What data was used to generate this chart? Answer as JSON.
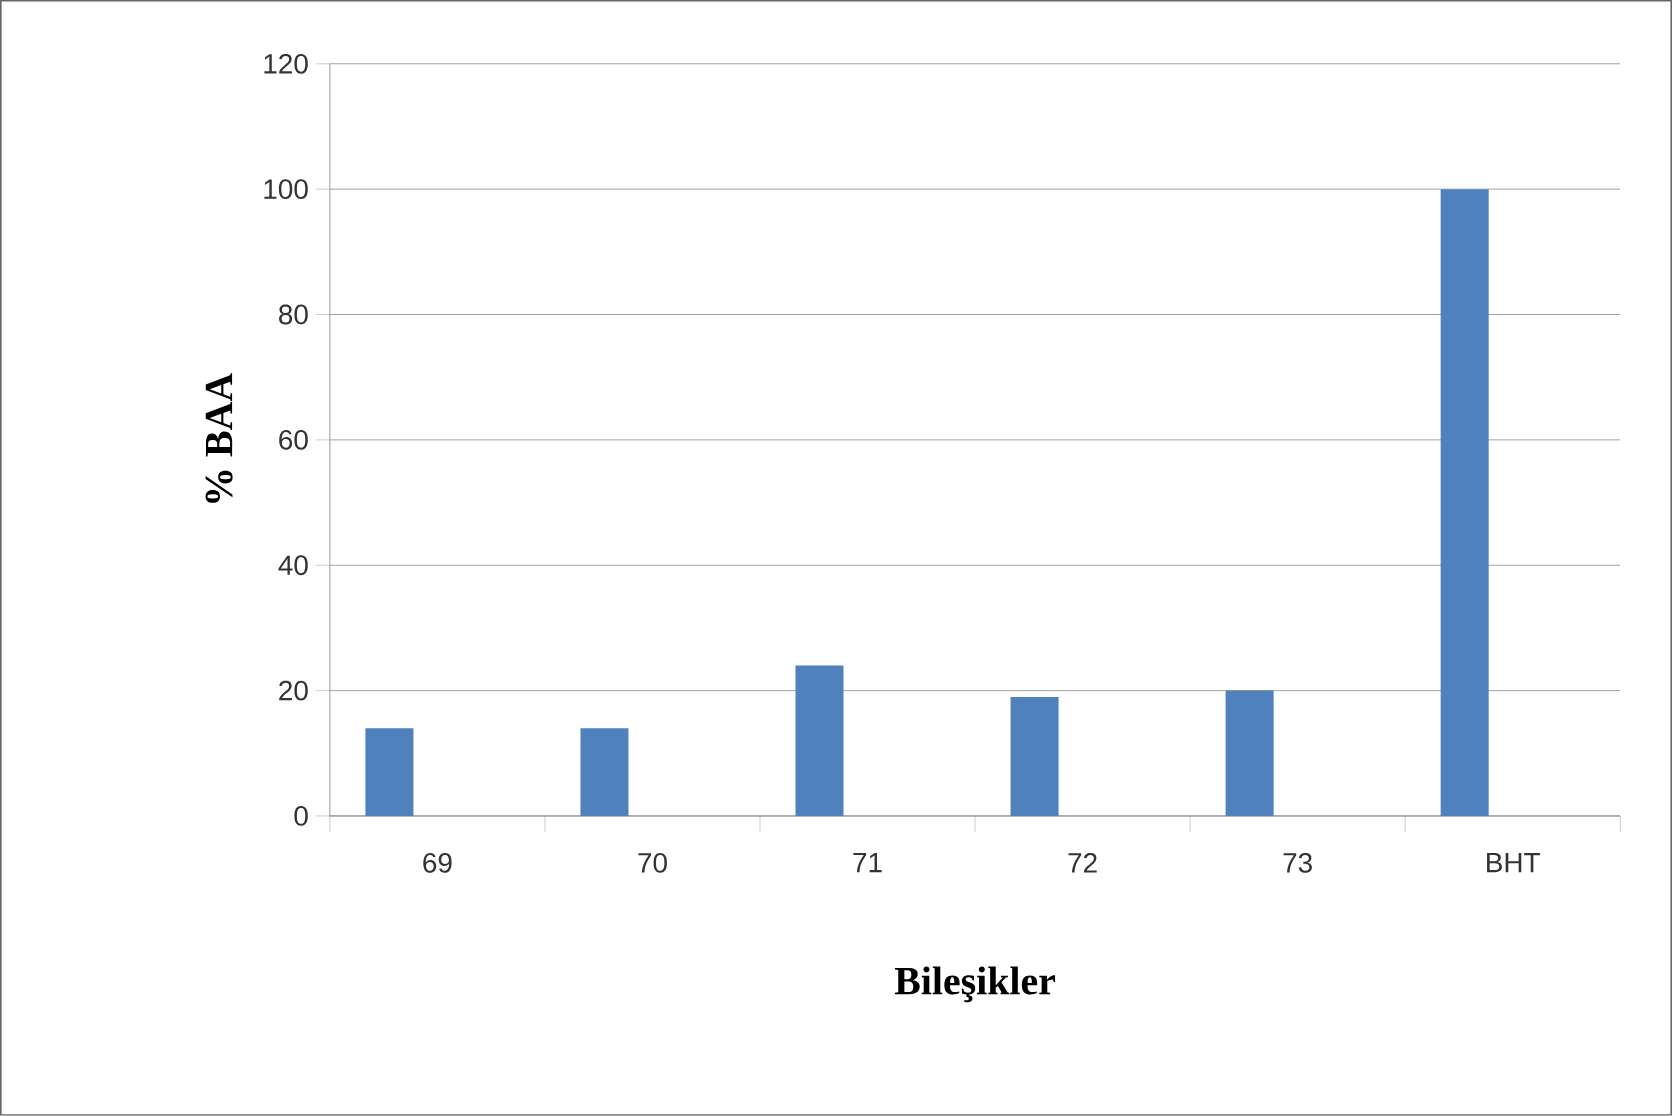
{
  "chart_data": {
    "type": "bar",
    "xlabel": "Bileşikler",
    "ylabel": "% BAA",
    "categories": [
      "69",
      "70",
      "71",
      "72",
      "73",
      "BHT"
    ],
    "values": [
      14,
      14,
      24,
      19,
      20,
      100
    ],
    "color": "#4f81bd",
    "ylim": [
      0,
      120
    ],
    "yticks": [
      0,
      20,
      40,
      60,
      80,
      100,
      120
    ],
    "grid": "y"
  }
}
